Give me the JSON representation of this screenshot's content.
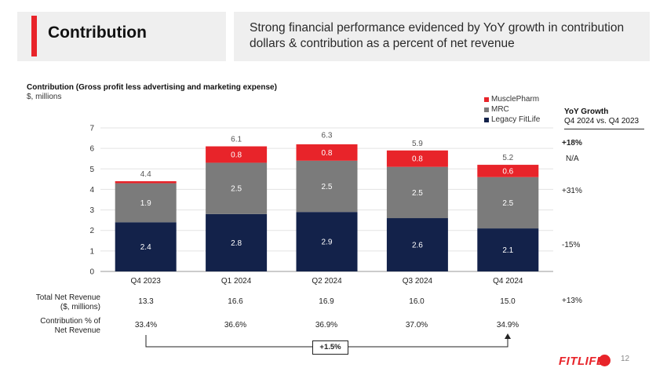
{
  "header": {
    "title": "Contribution",
    "subtitle": "Strong financial performance evidenced by YoY growth in contribution dollars & contribution as a percent of net revenue"
  },
  "chart_header": {
    "title": "Contribution (Gross profit less advertising and marketing expense)",
    "units": "$, millions"
  },
  "chart_data": {
    "type": "bar",
    "stacked": true,
    "categories": [
      "Q4 2023",
      "Q1 2024",
      "Q2 2024",
      "Q3 2024",
      "Q4 2024"
    ],
    "series": [
      {
        "name": "Legacy FitLife",
        "color": "#13224a",
        "values": [
          2.4,
          2.8,
          2.9,
          2.6,
          2.1
        ],
        "labels": [
          "2.4",
          "2.8",
          "2.9",
          "2.6",
          "2.1"
        ]
      },
      {
        "name": "MRC",
        "color": "#7b7b7b",
        "values": [
          1.9,
          2.5,
          2.5,
          2.5,
          2.5
        ],
        "labels": [
          "1.9",
          "2.5",
          "2.5",
          "2.5",
          "2.5"
        ]
      },
      {
        "name": "MusclePharm",
        "color": "#e8242a",
        "values": [
          0.1,
          0.8,
          0.8,
          0.8,
          0.6
        ],
        "labels": [
          "",
          "0.8",
          "0.8",
          "0.8",
          "0.6"
        ]
      }
    ],
    "totals": [
      4.4,
      6.1,
      6.3,
      5.9,
      5.2
    ],
    "total_labels": [
      "4.4",
      "6.1",
      "6.3",
      "5.9",
      "5.2"
    ],
    "ylim": [
      0,
      7
    ],
    "yticks": [
      "0",
      "1",
      "2",
      "3",
      "4",
      "5",
      "6",
      "7"
    ],
    "legend_position": "top-right",
    "grid": true
  },
  "legend": [
    {
      "name": "MusclePharm",
      "color": "#e8242a"
    },
    {
      "name": "MRC",
      "color": "#7b7b7b"
    },
    {
      "name": "Legacy FitLife",
      "color": "#13224a"
    }
  ],
  "yoy": {
    "title": "YoY Growth",
    "period": "Q4 2024 vs. Q4 2023",
    "total": "+18%",
    "musclepharm": "N/A",
    "mrc": "+31%",
    "legacy": "-15%",
    "net_revenue": "+13%"
  },
  "table": {
    "net_revenue_label_1": "Total Net Revenue",
    "net_revenue_label_2": "($, millions)",
    "net_revenue": [
      "13.3",
      "16.6",
      "16.9",
      "16.0",
      "15.0"
    ],
    "pct_label_1": "Contribution % of",
    "pct_label_2": "Net Revenue",
    "pct": [
      "33.4%",
      "36.6%",
      "36.9%",
      "37.0%",
      "34.9%"
    ]
  },
  "growth_callout": "+1.5%",
  "footer": {
    "logo": "FITLIFE",
    "page_number": "12"
  }
}
